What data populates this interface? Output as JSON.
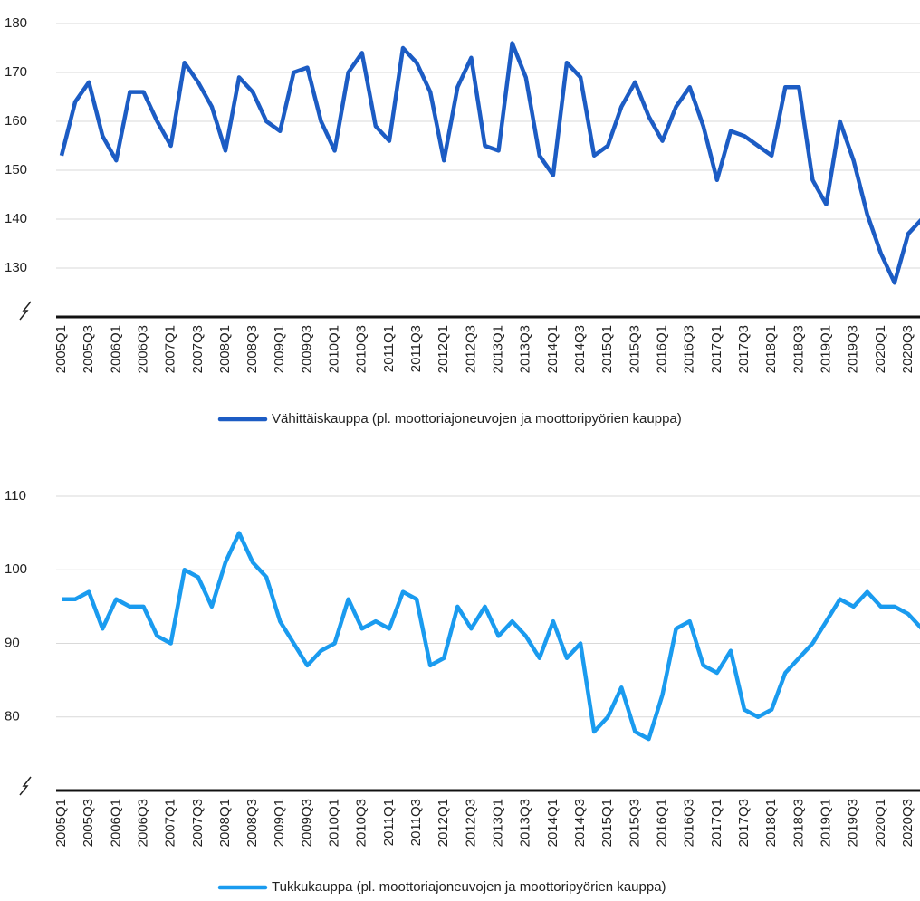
{
  "chart_data": [
    {
      "type": "line",
      "categories": [
        "2005Q1",
        null,
        "2005Q3",
        null,
        "2006Q1",
        null,
        "2006Q3",
        null,
        "2007Q1",
        null,
        "2007Q3",
        null,
        "2008Q1",
        null,
        "2008Q3",
        null,
        "2009Q1",
        null,
        "2009Q3",
        null,
        "2010Q1",
        null,
        "2010Q3",
        null,
        "2011Q1",
        null,
        "2011Q3",
        null,
        "2012Q1",
        null,
        "2012Q3",
        null,
        "2013Q1",
        null,
        "2013Q3",
        null,
        "2014Q1",
        null,
        "2014Q3",
        null,
        "2015Q1",
        null,
        "2015Q3",
        null,
        "2016Q1",
        null,
        "2016Q3",
        null,
        "2017Q1",
        null,
        "2017Q3",
        null,
        "2018Q1",
        null,
        "2018Q3",
        null,
        "2019Q1",
        null,
        "2019Q3",
        null,
        "2020Q1",
        null,
        "2020Q3",
        null
      ],
      "series": [
        {
          "name": "Vähittäiskauppa (pl. moottoriajoneuvojen ja moottoripyörien kauppa)",
          "color": "#1c5cc4",
          "values": [
            153,
            164,
            168,
            157,
            152,
            166,
            166,
            160,
            155,
            172,
            168,
            163,
            154,
            169,
            166,
            160,
            158,
            170,
            171,
            160,
            154,
            170,
            174,
            159,
            156,
            175,
            172,
            166,
            152,
            167,
            173,
            155,
            154,
            176,
            169,
            153,
            149,
            172,
            169,
            153,
            155,
            163,
            168,
            161,
            156,
            163,
            167,
            159,
            148,
            158,
            157,
            155,
            153,
            167,
            167,
            148,
            143,
            160,
            152,
            141,
            133,
            127,
            137,
            140
          ]
        }
      ],
      "ylim": [
        120,
        180
      ],
      "yticks": [
        130,
        140,
        150,
        160,
        170,
        180
      ],
      "grid": true
    },
    {
      "type": "line",
      "categories": [
        "2005Q1",
        null,
        "2005Q3",
        null,
        "2006Q1",
        null,
        "2006Q3",
        null,
        "2007Q1",
        null,
        "2007Q3",
        null,
        "2008Q1",
        null,
        "2008Q3",
        null,
        "2009Q1",
        null,
        "2009Q3",
        null,
        "2010Q1",
        null,
        "2010Q3",
        null,
        "2011Q1",
        null,
        "2011Q3",
        null,
        "2012Q1",
        null,
        "2012Q3",
        null,
        "2013Q1",
        null,
        "2013Q3",
        null,
        "2014Q1",
        null,
        "2014Q3",
        null,
        "2015Q1",
        null,
        "2015Q3",
        null,
        "2016Q1",
        null,
        "2016Q3",
        null,
        "2017Q1",
        null,
        "2017Q3",
        null,
        "2018Q1",
        null,
        "2018Q3",
        null,
        "2019Q1",
        null,
        "2019Q3",
        null,
        "2020Q1",
        null,
        "2020Q3",
        null
      ],
      "series": [
        {
          "name": "Tukkukauppa (pl. moottoriajoneuvojen ja moottoripyörien kauppa)",
          "color": "#1a9bef",
          "values": [
            96,
            96,
            97,
            92,
            96,
            95,
            95,
            91,
            90,
            100,
            99,
            95,
            101,
            105,
            101,
            99,
            93,
            90,
            87,
            89,
            90,
            96,
            92,
            93,
            92,
            97,
            96,
            87,
            88,
            95,
            92,
            95,
            91,
            93,
            91,
            88,
            93,
            88,
            90,
            78,
            80,
            84,
            78,
            77,
            83,
            92,
            93,
            87,
            86,
            89,
            81,
            80,
            81,
            86,
            88,
            90,
            93,
            96,
            95,
            97,
            95,
            95,
            94,
            92
          ]
        }
      ],
      "ylim": [
        70,
        110
      ],
      "yticks": [
        80,
        90,
        100,
        110
      ],
      "grid": true
    }
  ]
}
